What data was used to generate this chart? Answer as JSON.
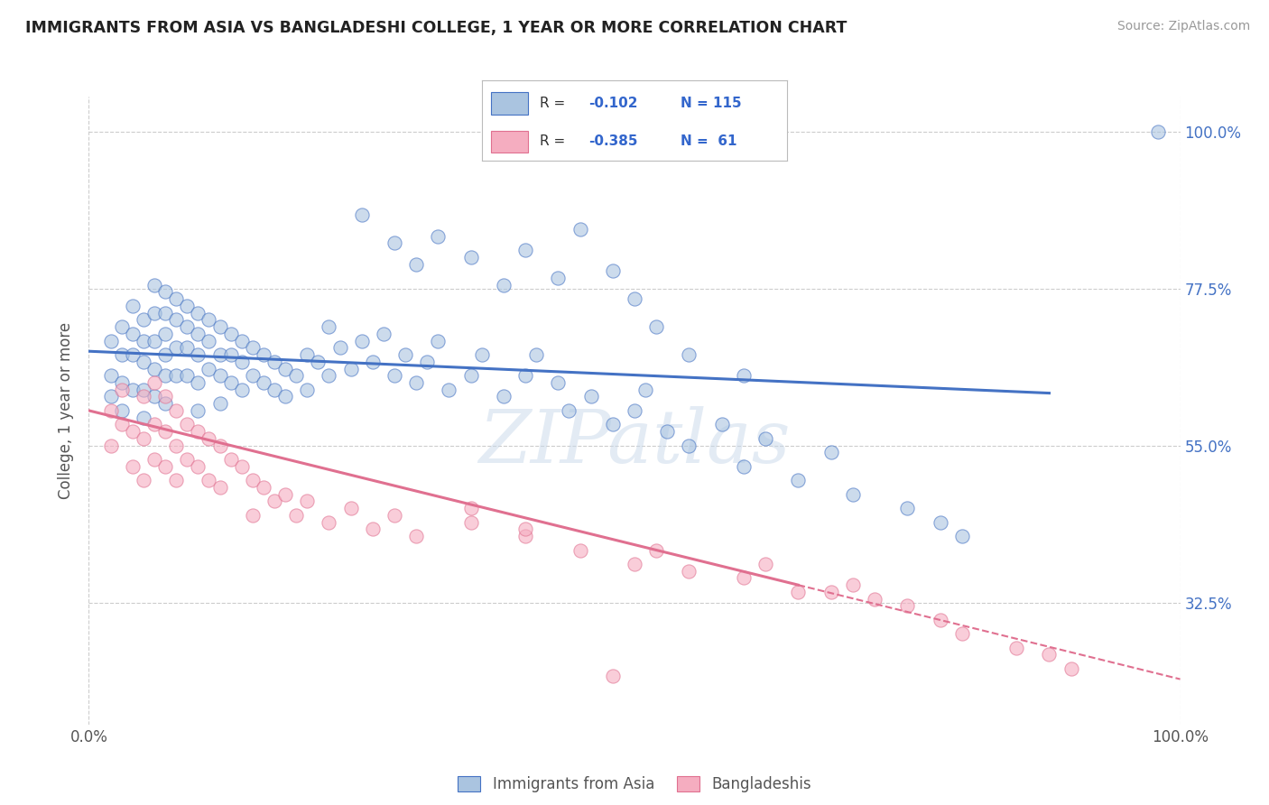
{
  "title": "IMMIGRANTS FROM ASIA VS BANGLADESHI COLLEGE, 1 YEAR OR MORE CORRELATION CHART",
  "source": "Source: ZipAtlas.com",
  "ylabel": "College, 1 year or more",
  "xlim": [
    0.0,
    1.0
  ],
  "ylim": [
    0.15,
    1.05
  ],
  "x_ticks": [
    0.0,
    1.0
  ],
  "x_tick_labels": [
    "0.0%",
    "100.0%"
  ],
  "y_tick_labels": [
    "32.5%",
    "55.0%",
    "77.5%",
    "100.0%"
  ],
  "y_ticks": [
    0.325,
    0.55,
    0.775,
    1.0
  ],
  "color_asia": "#aac4e0",
  "color_bangla": "#f5adc0",
  "line_color_asia": "#4472c4",
  "line_color_bangla": "#e07090",
  "watermark_text": "ZIPatlas",
  "background_color": "#ffffff",
  "grid_color": "#cccccc",
  "asia_trend_x0": 0.0,
  "asia_trend_y0": 0.685,
  "asia_trend_x1": 0.88,
  "asia_trend_y1": 0.625,
  "bangla_trend_x0": 0.0,
  "bangla_trend_y0": 0.6,
  "bangla_trend_x1": 0.65,
  "bangla_trend_y1": 0.35,
  "bangla_trend_dash_x0": 0.65,
  "bangla_trend_dash_y0": 0.35,
  "bangla_trend_dash_x1": 1.0,
  "bangla_trend_dash_y1": 0.215,
  "asia_scatter_x": [
    0.02,
    0.02,
    0.02,
    0.03,
    0.03,
    0.03,
    0.03,
    0.04,
    0.04,
    0.04,
    0.04,
    0.05,
    0.05,
    0.05,
    0.05,
    0.05,
    0.06,
    0.06,
    0.06,
    0.06,
    0.06,
    0.07,
    0.07,
    0.07,
    0.07,
    0.07,
    0.07,
    0.08,
    0.08,
    0.08,
    0.08,
    0.09,
    0.09,
    0.09,
    0.09,
    0.1,
    0.1,
    0.1,
    0.1,
    0.1,
    0.11,
    0.11,
    0.11,
    0.12,
    0.12,
    0.12,
    0.12,
    0.13,
    0.13,
    0.13,
    0.14,
    0.14,
    0.14,
    0.15,
    0.15,
    0.16,
    0.16,
    0.17,
    0.17,
    0.18,
    0.18,
    0.19,
    0.2,
    0.2,
    0.21,
    0.22,
    0.22,
    0.23,
    0.24,
    0.25,
    0.26,
    0.27,
    0.28,
    0.29,
    0.3,
    0.31,
    0.32,
    0.33,
    0.35,
    0.36,
    0.38,
    0.4,
    0.41,
    0.43,
    0.44,
    0.46,
    0.48,
    0.5,
    0.51,
    0.53,
    0.55,
    0.58,
    0.6,
    0.62,
    0.65,
    0.68,
    0.7,
    0.75,
    0.78,
    0.8,
    0.25,
    0.28,
    0.3,
    0.32,
    0.35,
    0.38,
    0.4,
    0.43,
    0.45,
    0.48,
    0.5,
    0.52,
    0.55,
    0.6,
    0.98
  ],
  "asia_scatter_y": [
    0.7,
    0.65,
    0.62,
    0.72,
    0.68,
    0.64,
    0.6,
    0.75,
    0.71,
    0.68,
    0.63,
    0.73,
    0.7,
    0.67,
    0.63,
    0.59,
    0.78,
    0.74,
    0.7,
    0.66,
    0.62,
    0.77,
    0.74,
    0.71,
    0.68,
    0.65,
    0.61,
    0.76,
    0.73,
    0.69,
    0.65,
    0.75,
    0.72,
    0.69,
    0.65,
    0.74,
    0.71,
    0.68,
    0.64,
    0.6,
    0.73,
    0.7,
    0.66,
    0.72,
    0.68,
    0.65,
    0.61,
    0.71,
    0.68,
    0.64,
    0.7,
    0.67,
    0.63,
    0.69,
    0.65,
    0.68,
    0.64,
    0.67,
    0.63,
    0.66,
    0.62,
    0.65,
    0.68,
    0.63,
    0.67,
    0.72,
    0.65,
    0.69,
    0.66,
    0.7,
    0.67,
    0.71,
    0.65,
    0.68,
    0.64,
    0.67,
    0.7,
    0.63,
    0.65,
    0.68,
    0.62,
    0.65,
    0.68,
    0.64,
    0.6,
    0.62,
    0.58,
    0.6,
    0.63,
    0.57,
    0.55,
    0.58,
    0.52,
    0.56,
    0.5,
    0.54,
    0.48,
    0.46,
    0.44,
    0.42,
    0.88,
    0.84,
    0.81,
    0.85,
    0.82,
    0.78,
    0.83,
    0.79,
    0.86,
    0.8,
    0.76,
    0.72,
    0.68,
    0.65,
    1.0
  ],
  "bangla_scatter_x": [
    0.02,
    0.02,
    0.03,
    0.03,
    0.04,
    0.04,
    0.05,
    0.05,
    0.05,
    0.06,
    0.06,
    0.06,
    0.07,
    0.07,
    0.07,
    0.08,
    0.08,
    0.08,
    0.09,
    0.09,
    0.1,
    0.1,
    0.11,
    0.11,
    0.12,
    0.12,
    0.13,
    0.14,
    0.15,
    0.15,
    0.16,
    0.17,
    0.18,
    0.19,
    0.2,
    0.22,
    0.24,
    0.26,
    0.28,
    0.3,
    0.35,
    0.4,
    0.45,
    0.5,
    0.52,
    0.55,
    0.6,
    0.62,
    0.65,
    0.68,
    0.7,
    0.72,
    0.75,
    0.78,
    0.8,
    0.85,
    0.88,
    0.9,
    0.35,
    0.4,
    0.48
  ],
  "bangla_scatter_y": [
    0.6,
    0.55,
    0.63,
    0.58,
    0.57,
    0.52,
    0.62,
    0.56,
    0.5,
    0.64,
    0.58,
    0.53,
    0.62,
    0.57,
    0.52,
    0.6,
    0.55,
    0.5,
    0.58,
    0.53,
    0.57,
    0.52,
    0.56,
    0.5,
    0.55,
    0.49,
    0.53,
    0.52,
    0.5,
    0.45,
    0.49,
    0.47,
    0.48,
    0.45,
    0.47,
    0.44,
    0.46,
    0.43,
    0.45,
    0.42,
    0.44,
    0.42,
    0.4,
    0.38,
    0.4,
    0.37,
    0.36,
    0.38,
    0.34,
    0.34,
    0.35,
    0.33,
    0.32,
    0.3,
    0.28,
    0.26,
    0.25,
    0.23,
    0.46,
    0.43,
    0.22
  ]
}
